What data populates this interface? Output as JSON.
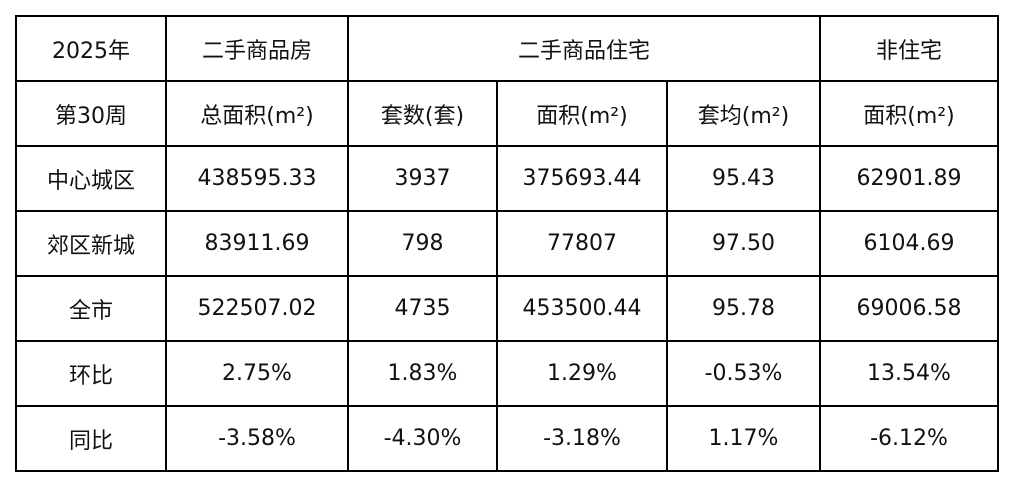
{
  "table": {
    "header": [
      "2025年",
      "二手商品房",
      "二手商品住宅",
      "非住宅"
    ],
    "subheader": [
      "第30周",
      "总面积(m²)",
      "套数(套)",
      "面积(m²)",
      "套均(m²)",
      "面积(m²)"
    ],
    "rows": [
      [
        "中心城区",
        "438595.33",
        "3937",
        "375693.44",
        "95.43",
        "62901.89"
      ],
      [
        "郊区新城",
        "83911.69",
        "798",
        "77807",
        "97.50",
        "6104.69"
      ],
      [
        "全市",
        "522507.02",
        "4735",
        "453500.44",
        "95.78",
        "69006.58"
      ],
      [
        "环比",
        "2.75%",
        "1.83%",
        "1.29%",
        "-0.53%",
        "13.54%"
      ],
      [
        "同比",
        "-3.58%",
        "-4.30%",
        "-3.18%",
        "1.17%",
        "-6.12%"
      ]
    ]
  }
}
